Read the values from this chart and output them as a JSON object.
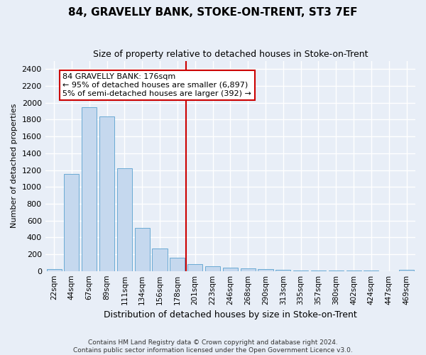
{
  "title1": "84, GRAVELLY BANK, STOKE-ON-TRENT, ST3 7EF",
  "title2": "Size of property relative to detached houses in Stoke-on-Trent",
  "xlabel": "Distribution of detached houses by size in Stoke-on-Trent",
  "ylabel": "Number of detached properties",
  "bar_labels": [
    "22sqm",
    "44sqm",
    "67sqm",
    "89sqm",
    "111sqm",
    "134sqm",
    "156sqm",
    "178sqm",
    "201sqm",
    "223sqm",
    "246sqm",
    "268sqm",
    "290sqm",
    "313sqm",
    "335sqm",
    "357sqm",
    "380sqm",
    "402sqm",
    "424sqm",
    "447sqm",
    "469sqm"
  ],
  "bar_values": [
    25,
    1155,
    1950,
    1840,
    1220,
    510,
    265,
    155,
    80,
    55,
    40,
    35,
    20,
    12,
    8,
    6,
    5,
    4,
    3,
    0,
    18
  ],
  "bar_color": "#c5d8ee",
  "bar_edgecolor": "#6aaad4",
  "vline_x": 7.5,
  "vline_color": "#cc0000",
  "annotation_title": "84 GRAVELLY BANK: 176sqm",
  "annotation_line1": "← 95% of detached houses are smaller (6,897)",
  "annotation_line2": "5% of semi-detached houses are larger (392) →",
  "annotation_box_color": "#cc0000",
  "ylim": [
    0,
    2500
  ],
  "yticks": [
    0,
    200,
    400,
    600,
    800,
    1000,
    1200,
    1400,
    1600,
    1800,
    2000,
    2200,
    2400
  ],
  "footer1": "Contains HM Land Registry data © Crown copyright and database right 2024.",
  "footer2": "Contains public sector information licensed under the Open Government Licence v3.0.",
  "bg_color": "#e8eef7",
  "plot_bg_color": "#e8eef7",
  "grid_color": "#ffffff",
  "title1_fontsize": 11,
  "title2_fontsize": 9,
  "xlabel_fontsize": 9,
  "ylabel_fontsize": 8
}
